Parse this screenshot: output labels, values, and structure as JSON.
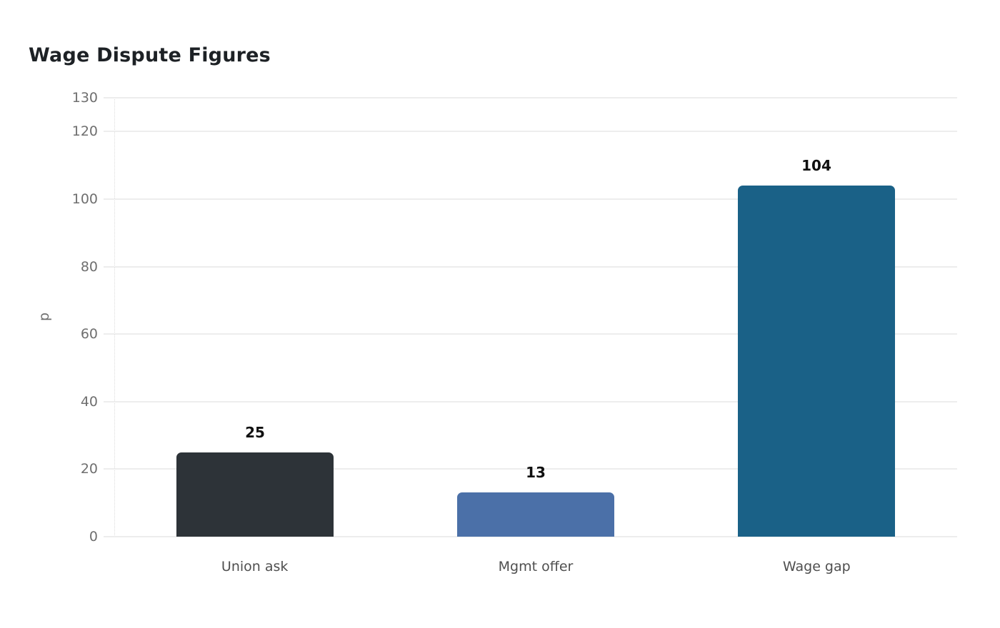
{
  "chart_data": {
    "type": "bar",
    "title": "Wage Dispute Figures",
    "categories": [
      "Union ask",
      "Mgmt offer",
      "Wage gap"
    ],
    "values": [
      25,
      13,
      104
    ],
    "value_labels": [
      "25",
      "13",
      "104"
    ],
    "bar_colors": [
      "#2d3338",
      "#4b70a8",
      "#1a6187"
    ],
    "xlabel": "",
    "ylabel": "p",
    "ylim": [
      0,
      130
    ],
    "yticks": [
      0,
      20,
      40,
      60,
      80,
      100,
      120,
      130
    ],
    "grid": true,
    "legend": false,
    "colors": {
      "background": "#ffffff",
      "title_text": "#1d2125",
      "axis_tick_text": "#6f6f6f",
      "category_text": "#4f4f4f",
      "value_label_text": "#101010",
      "gridline": "#ededed",
      "axis_line": "#dcdcdc"
    }
  }
}
